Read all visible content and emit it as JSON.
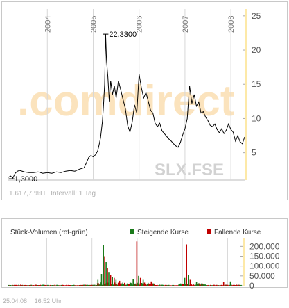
{
  "chart_data": [
    {
      "type": "line",
      "symbol": "SLX.FSE",
      "watermark": ".comdirect",
      "year_labels": [
        "2004",
        "2005",
        "2006",
        "2007",
        "2008"
      ],
      "y_ticks": [
        5,
        10,
        15,
        20,
        25
      ],
      "ylim": [
        1,
        26
      ],
      "x_start_year": 2003.15,
      "x_end_year": 2008.3,
      "max_label": "22,3300",
      "min_label": "1,3000",
      "max_point": {
        "x": 2005.27,
        "y": 22.33
      },
      "min_point": {
        "x": 2003.22,
        "y": 1.3
      },
      "stats_text": "1.617,7 %HL Intervall: 1 Tag",
      "series": [
        {
          "x": [
            2003.15,
            2003.2,
            2003.25,
            2003.3,
            2003.35,
            2003.4,
            2003.5,
            2003.6,
            2003.7,
            2003.8,
            2003.9,
            2004.0,
            2004.1,
            2004.2,
            2004.3,
            2004.4,
            2004.5,
            2004.6,
            2004.7,
            2004.75,
            2004.8,
            2004.85,
            2004.9,
            2004.95,
            2005.0,
            2005.05,
            2005.1,
            2005.13,
            2005.16,
            2005.2,
            2005.22,
            2005.25,
            2005.27,
            2005.29,
            2005.32,
            2005.35,
            2005.38,
            2005.42,
            2005.46,
            2005.5,
            2005.55,
            2005.6,
            2005.65,
            2005.7,
            2005.75,
            2005.8,
            2005.85,
            2005.9,
            2005.95,
            2006.0,
            2006.05,
            2006.1,
            2006.15,
            2006.2,
            2006.25,
            2006.3,
            2006.35,
            2006.4,
            2006.45,
            2006.5,
            2006.55,
            2006.6,
            2006.65,
            2006.7,
            2006.75,
            2006.8,
            2006.85,
            2006.9,
            2006.95,
            2007.0,
            2007.05,
            2007.1,
            2007.15,
            2007.2,
            2007.25,
            2007.3,
            2007.35,
            2007.4,
            2007.45,
            2007.5,
            2007.55,
            2007.6,
            2007.65,
            2007.7,
            2007.75,
            2007.8,
            2007.85,
            2007.9,
            2007.95,
            2008.0,
            2008.05,
            2008.1,
            2008.15,
            2008.2,
            2008.25,
            2008.3
          ],
          "y": [
            1.4,
            1.6,
            1.3,
            2.0,
            2.3,
            2.4,
            2.2,
            2.1,
            2.1,
            2.2,
            2.0,
            2.1,
            2.0,
            2.2,
            2.1,
            2.3,
            2.4,
            2.3,
            2.6,
            2.7,
            2.8,
            3.5,
            4.3,
            4.6,
            4.4,
            4.7,
            5.3,
            6.2,
            7.2,
            9.5,
            11.5,
            15.0,
            22.33,
            18.5,
            16.0,
            12.5,
            15.5,
            13.5,
            14.8,
            13.0,
            15.5,
            14.2,
            12.8,
            11.5,
            9.0,
            8.0,
            9.5,
            12.0,
            10.8,
            16.5,
            14.5,
            13.0,
            13.8,
            12.5,
            11.2,
            10.8,
            9.3,
            8.8,
            9.3,
            8.2,
            7.8,
            7.4,
            7.0,
            6.7,
            6.3,
            6.0,
            5.8,
            6.5,
            7.6,
            8.5,
            10.0,
            14.8,
            12.2,
            13.5,
            11.8,
            12.4,
            10.8,
            11.0,
            10.2,
            9.7,
            9.0,
            8.8,
            9.2,
            8.4,
            7.9,
            8.5,
            7.8,
            8.3,
            9.2,
            8.4,
            8.0,
            6.7,
            7.5,
            6.6,
            6.3,
            7.3
          ]
        }
      ]
    },
    {
      "type": "bar",
      "title": "Stück-Volumen (rot-grün)",
      "legend": [
        {
          "name": "Steigende Kurse",
          "color": "#1a7a1a"
        },
        {
          "name": "Fallende Kurse",
          "color": "#c00000"
        }
      ],
      "y_ticks": [
        "0",
        "50.000",
        "100.000",
        "150.000",
        "200.000"
      ],
      "y_tick_values": [
        0,
        50000,
        100000,
        150000,
        200000
      ],
      "ylim": [
        0,
        240000
      ],
      "spikes": [
        {
          "x": 2005.12,
          "v": 30000,
          "up": true
        },
        {
          "x": 2005.2,
          "v": 60000,
          "up": true
        },
        {
          "x": 2005.24,
          "v": 205000,
          "up": true
        },
        {
          "x": 2005.27,
          "v": 150000,
          "up": false
        },
        {
          "x": 2005.3,
          "v": 120000,
          "up": true
        },
        {
          "x": 2005.33,
          "v": 90000,
          "up": false
        },
        {
          "x": 2005.36,
          "v": 70000,
          "up": true
        },
        {
          "x": 2005.4,
          "v": 55000,
          "up": false
        },
        {
          "x": 2005.44,
          "v": 45000,
          "up": true
        },
        {
          "x": 2005.48,
          "v": 40000,
          "up": false
        },
        {
          "x": 2005.52,
          "v": 30000,
          "up": true
        },
        {
          "x": 2005.6,
          "v": 25000,
          "up": false
        },
        {
          "x": 2005.9,
          "v": 35000,
          "up": true
        },
        {
          "x": 2005.98,
          "v": 225000,
          "up": false
        },
        {
          "x": 2006.02,
          "v": 50000,
          "up": true
        },
        {
          "x": 2006.06,
          "v": 40000,
          "up": false
        },
        {
          "x": 2006.12,
          "v": 30000,
          "up": true
        },
        {
          "x": 2006.3,
          "v": 22000,
          "up": false
        },
        {
          "x": 2007.04,
          "v": 40000,
          "up": true
        },
        {
          "x": 2007.08,
          "v": 210000,
          "up": false
        },
        {
          "x": 2007.12,
          "v": 55000,
          "up": true
        },
        {
          "x": 2007.16,
          "v": 30000,
          "up": false
        },
        {
          "x": 2007.3,
          "v": 20000,
          "up": true
        },
        {
          "x": 2007.9,
          "v": 18000,
          "up": false
        },
        {
          "x": 2008.05,
          "v": 22000,
          "up": true
        }
      ]
    }
  ],
  "footer": {
    "date": "25.04.08",
    "time": "16:52 Uhr"
  },
  "colors": {
    "axis_bar": "#fde9a8",
    "grid": "#d8d8d8",
    "line": "#000000",
    "watermark_orange": "#fbe3bd",
    "watermark_gray": "#e4e4e4",
    "symbol": "#d2d2d2"
  }
}
